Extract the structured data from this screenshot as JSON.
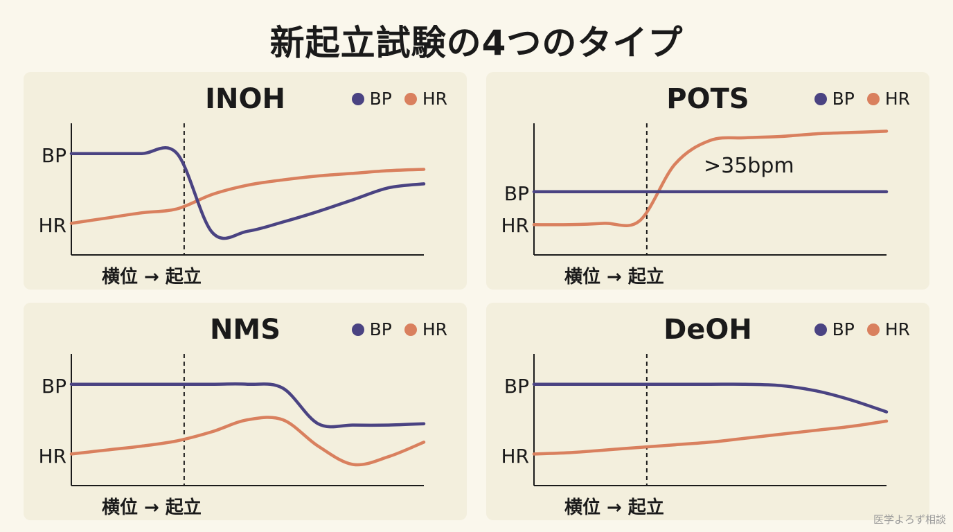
{
  "title": "新起立試験の4つのタイプ",
  "colors": {
    "bp": "#4a4382",
    "hr": "#d9805e",
    "panel_bg": "#f3efdd",
    "page_bg": "#faf7ec"
  },
  "legend": {
    "bp": "BP",
    "hr": "HR"
  },
  "axis_labels": {
    "bp": "BP",
    "hr": "HR",
    "x": "横位 → 起立"
  },
  "watermark": "医学よろず相談",
  "panels": [
    {
      "title": "INOH",
      "annotation": ""
    },
    {
      "title": "POTS",
      "annotation": ">35bpm"
    },
    {
      "title": "NMS",
      "annotation": ""
    },
    {
      "title": "DeOH",
      "annotation": ""
    }
  ],
  "chart_data": [
    {
      "type": "line",
      "title": "INOH",
      "x": [
        0,
        1,
        2,
        3,
        4,
        5,
        6,
        7,
        8,
        9,
        10
      ],
      "xlim": [
        0,
        10
      ],
      "ylim": [
        0,
        10
      ],
      "event_x": 3.2,
      "series": [
        {
          "name": "BP",
          "values": [
            7.7,
            7.7,
            7.7,
            7.7,
            1.7,
            1.8,
            2.5,
            3.3,
            4.2,
            5.1,
            5.4
          ]
        },
        {
          "name": "HR",
          "values": [
            2.4,
            2.8,
            3.2,
            3.5,
            4.6,
            5.3,
            5.7,
            6.0,
            6.2,
            6.4,
            6.5
          ]
        }
      ]
    },
    {
      "type": "line",
      "title": "POTS",
      "x": [
        0,
        1,
        2,
        3,
        4,
        5,
        6,
        7,
        8,
        9,
        10
      ],
      "xlim": [
        0,
        10
      ],
      "ylim": [
        0,
        10
      ],
      "event_x": 3.2,
      "series": [
        {
          "name": "BP",
          "values": [
            4.8,
            4.8,
            4.8,
            4.8,
            4.8,
            4.8,
            4.8,
            4.8,
            4.8,
            4.8,
            4.8
          ]
        },
        {
          "name": "HR",
          "values": [
            2.3,
            2.3,
            2.4,
            2.6,
            6.9,
            8.7,
            8.9,
            9.0,
            9.2,
            9.3,
            9.4
          ]
        }
      ]
    },
    {
      "type": "line",
      "title": "NMS",
      "x": [
        0,
        1,
        2,
        3,
        4,
        5,
        6,
        7,
        8,
        9,
        10
      ],
      "xlim": [
        0,
        10
      ],
      "ylim": [
        0,
        10
      ],
      "event_x": 3.2,
      "series": [
        {
          "name": "BP",
          "values": [
            7.7,
            7.7,
            7.7,
            7.7,
            7.7,
            7.7,
            7.4,
            4.7,
            4.6,
            4.6,
            4.7
          ]
        },
        {
          "name": "HR",
          "values": [
            2.4,
            2.7,
            3.0,
            3.4,
            4.1,
            5.0,
            5.0,
            3.0,
            1.6,
            2.2,
            3.3
          ]
        }
      ]
    },
    {
      "type": "line",
      "title": "DeOH",
      "x": [
        0,
        1,
        2,
        3,
        4,
        5,
        6,
        7,
        8,
        9,
        10
      ],
      "xlim": [
        0,
        10
      ],
      "ylim": [
        0,
        10
      ],
      "event_x": 3.2,
      "series": [
        {
          "name": "BP",
          "values": [
            7.7,
            7.7,
            7.7,
            7.7,
            7.7,
            7.7,
            7.7,
            7.6,
            7.2,
            6.5,
            5.6
          ]
        },
        {
          "name": "HR",
          "values": [
            2.4,
            2.5,
            2.7,
            2.9,
            3.1,
            3.3,
            3.6,
            3.9,
            4.2,
            4.5,
            4.9
          ]
        }
      ]
    }
  ]
}
